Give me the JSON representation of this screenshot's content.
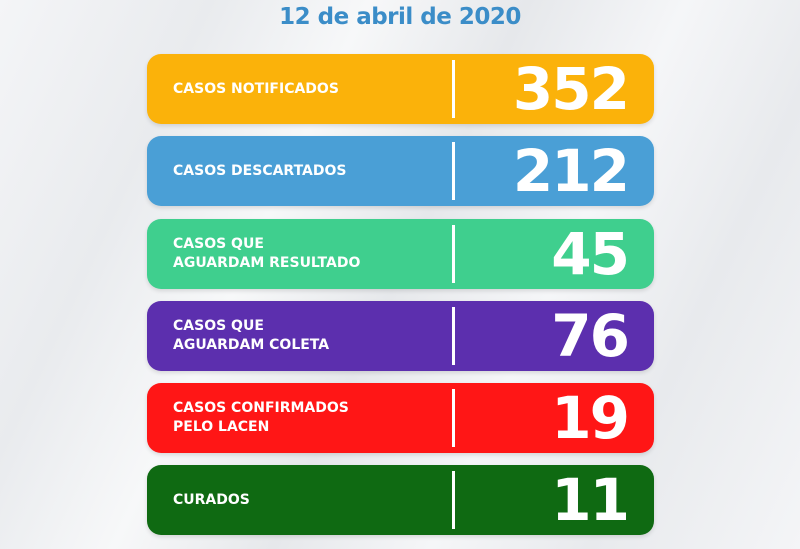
{
  "title": "12 de abril de 2020",
  "cards": [
    {
      "label": "CASOS NOTIFICADOS",
      "value": "352",
      "color": "#fbb20a"
    },
    {
      "label": "CASOS DESCARTADOS",
      "value": "212",
      "color": "#4a9fd6"
    },
    {
      "label": "CASOS QUE\nAGUARDAM RESULTADO",
      "value": "45",
      "color": "#3fcf8e"
    },
    {
      "label": "CASOS QUE\nAGUARDAM COLETA",
      "value": "76",
      "color": "#5c2fae"
    },
    {
      "label": "CASOS CONFIRMADOS\nPELO LACEN",
      "value": "19",
      "color": "#ff1616"
    },
    {
      "label": "CURADOS",
      "value": "11",
      "color": "#0f6a12"
    }
  ]
}
